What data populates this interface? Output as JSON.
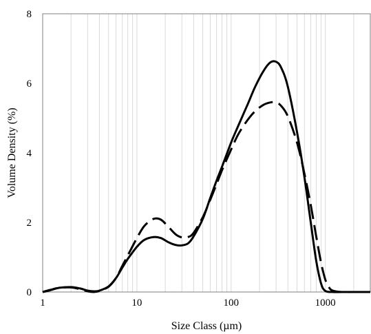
{
  "chart_data": {
    "type": "line",
    "xlabel": "Size Class (µm)",
    "ylabel": "Volume Density (%)",
    "x_scale": "log",
    "xlim": [
      1,
      3000
    ],
    "ylim": [
      0,
      8
    ],
    "x_ticks": [
      1,
      10,
      100,
      1000
    ],
    "x_tick_labels": [
      "1",
      "10",
      "100",
      "1000"
    ],
    "y_ticks": [
      0,
      2,
      4,
      6,
      8
    ],
    "y_tick_labels": [
      "0",
      "2",
      "4",
      "6",
      "8"
    ],
    "grid": "vertical minor and major gridlines on log x axis",
    "legend": "none",
    "series": [
      {
        "style": "solid",
        "color": "#000000",
        "x": [
          1,
          1.2,
          1.5,
          2,
          2.5,
          3,
          3.5,
          4,
          5,
          6,
          7,
          8,
          10,
          12,
          15,
          18,
          22,
          26,
          30,
          35,
          40,
          50,
          60,
          70,
          80,
          100,
          120,
          150,
          180,
          220,
          260,
          300,
          340,
          400,
          500,
          600,
          700,
          800,
          900,
          1000,
          1200,
          1500,
          2000,
          3000
        ],
        "y": [
          0,
          0.05,
          0.12,
          0.14,
          0.1,
          0.04,
          0.02,
          0.04,
          0.16,
          0.4,
          0.7,
          0.95,
          1.3,
          1.5,
          1.58,
          1.55,
          1.42,
          1.35,
          1.34,
          1.4,
          1.6,
          2.1,
          2.7,
          3.2,
          3.6,
          4.3,
          4.8,
          5.4,
          5.9,
          6.35,
          6.6,
          6.62,
          6.45,
          5.9,
          4.6,
          3.3,
          2.0,
          0.9,
          0.25,
          0.03,
          0,
          0,
          0,
          0
        ]
      },
      {
        "style": "dashed",
        "color": "#000000",
        "x": [
          1,
          1.2,
          1.5,
          2,
          2.5,
          3,
          3.5,
          4,
          5,
          6,
          7,
          8,
          10,
          12,
          15,
          18,
          22,
          26,
          30,
          35,
          40,
          50,
          60,
          70,
          80,
          100,
          120,
          150,
          180,
          220,
          260,
          300,
          340,
          400,
          500,
          600,
          700,
          800,
          900,
          1000,
          1100,
          1200,
          1500,
          2000,
          3000
        ],
        "y": [
          0,
          0.06,
          0.12,
          0.13,
          0.08,
          0.02,
          0,
          0.03,
          0.15,
          0.4,
          0.75,
          1.05,
          1.55,
          1.9,
          2.1,
          2.08,
          1.85,
          1.65,
          1.57,
          1.58,
          1.7,
          2.15,
          2.65,
          3.1,
          3.5,
          4.1,
          4.55,
          4.95,
          5.2,
          5.38,
          5.45,
          5.45,
          5.35,
          5.05,
          4.3,
          3.4,
          2.5,
          1.6,
          0.85,
          0.35,
          0.12,
          0.04,
          0,
          0,
          0
        ]
      }
    ]
  }
}
